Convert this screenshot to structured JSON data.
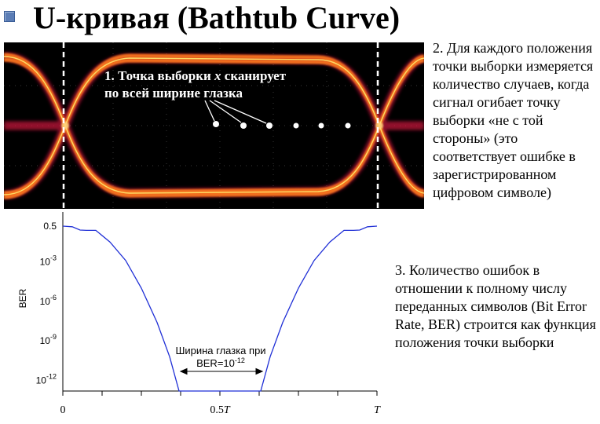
{
  "title": "U-кривая (Bathtub Curve)",
  "eye_diagram": {
    "note_line1_prefix": "1. Точка выборки",
    "note_var": "x",
    "note_line1_suffix": "сканирует",
    "note_line2": "по всей ширине глазка"
  },
  "point2_text": "2. Для каждого положения точки выборки измеряется количество случаев, когда сигнал огибает точку выборки «не с той стороны» (это соответствует ошибке в зарегистрированном цифровом символе)",
  "point3_text": "3. Количество ошибок в отношении к полному числу переданных символов (Bit Error Rate, BER)  строится как функция положения точки выборки",
  "chart_data": {
    "type": "line",
    "ylabel": "BER",
    "y_tick_labels": [
      {
        "base": "0.5",
        "exp": ""
      },
      {
        "base": "10",
        "exp": "-3"
      },
      {
        "base": "10",
        "exp": "-6"
      },
      {
        "base": "10",
        "exp": "-9"
      },
      {
        "base": "10",
        "exp": "-12"
      }
    ],
    "x_tick_labels": [
      {
        "base": "0",
        "var": ""
      },
      {
        "base": "0.5",
        "var": "T"
      },
      {
        "base": "",
        "var": "T"
      }
    ],
    "annotation_line1": "Ширина глазка при",
    "annotation_line2_prefix": "BER=10",
    "annotation_line2_exp": "-12",
    "line_color": "#1f2fd6",
    "x_range": [
      0,
      1
    ],
    "y_range_log10": [
      -12.8,
      -0.3
    ],
    "series": [
      {
        "points": [
          [
            0.0,
            -0.3
          ],
          [
            0.03,
            -0.35
          ],
          [
            0.055,
            -0.6
          ],
          [
            0.075,
            -0.62
          ],
          [
            0.105,
            -0.62
          ],
          [
            0.15,
            -1.5
          ],
          [
            0.2,
            -2.9
          ],
          [
            0.25,
            -5.0
          ],
          [
            0.3,
            -7.6
          ],
          [
            0.34,
            -10.2
          ],
          [
            0.37,
            -12.8
          ],
          [
            0.63,
            -12.8
          ],
          [
            0.66,
            -10.2
          ],
          [
            0.7,
            -7.6
          ],
          [
            0.75,
            -5.0
          ],
          [
            0.8,
            -2.9
          ],
          [
            0.85,
            -1.5
          ],
          [
            0.895,
            -0.62
          ],
          [
            0.925,
            -0.62
          ],
          [
            0.945,
            -0.6
          ],
          [
            0.97,
            -0.35
          ],
          [
            1.0,
            -0.3
          ]
        ]
      }
    ]
  }
}
